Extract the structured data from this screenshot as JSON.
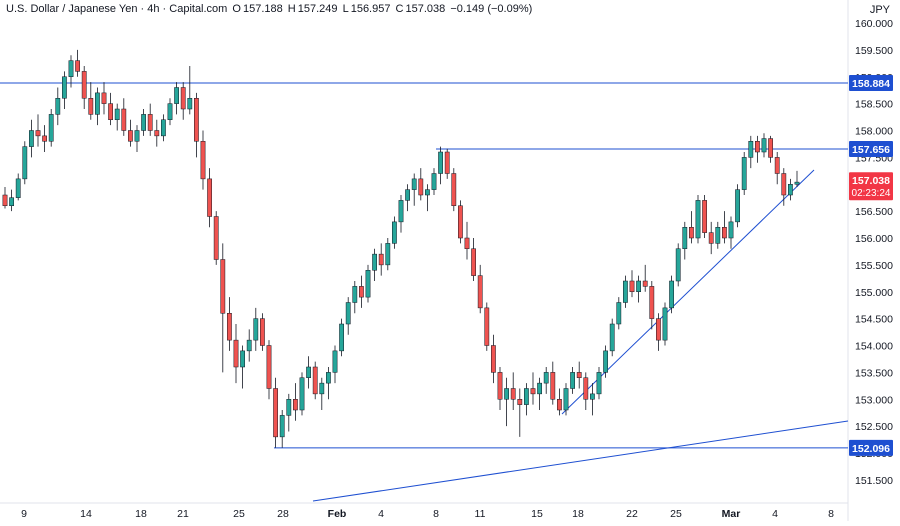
{
  "header": {
    "instrument": "U.S. Dollar / Japanese Yen · 4h · Capital.com",
    "open_label": "O",
    "open": "157.188",
    "high_label": "H",
    "high": "157.249",
    "low_label": "L",
    "low": "156.957",
    "close_label": "C",
    "close": "157.038",
    "change": "−0.149 (−0.09%)",
    "currency": "JPY"
  },
  "colors": {
    "up": "#26a69a",
    "down": "#ef5350",
    "line": "#2962ff",
    "axis_text": "#131722",
    "badge_line": "#1e4fd1",
    "badge_price": "#f23645"
  },
  "chart_data": {
    "type": "candlestick",
    "ylim": [
      151.2,
      160.1
    ],
    "y_ticks": [
      "151.500",
      "152.000",
      "152.500",
      "153.000",
      "153.500",
      "154.000",
      "154.500",
      "155.000",
      "155.500",
      "156.000",
      "156.500",
      "157.000",
      "157.500",
      "158.000",
      "158.500",
      "159.000",
      "159.500",
      "160.000"
    ],
    "x_ticks": [
      "9",
      "14",
      "18",
      "21",
      "25",
      "28",
      "Feb",
      "4",
      "8",
      "11",
      "15",
      "18",
      "22",
      "25",
      "Mar",
      "4",
      "8"
    ],
    "price_badges": [
      {
        "label": "158.884",
        "value": 158.884
      },
      {
        "label": "157.656",
        "value": 157.656
      },
      {
        "label": "152.096",
        "value": 152.096
      }
    ],
    "last_price": {
      "value": "157.038",
      "countdown": "02:23:24"
    },
    "candles": [
      [
        156.8,
        156.95,
        156.55,
        156.6
      ],
      [
        156.6,
        156.9,
        156.5,
        156.75
      ],
      [
        156.75,
        157.2,
        156.7,
        157.1
      ],
      [
        157.1,
        157.8,
        157.0,
        157.7
      ],
      [
        157.7,
        158.2,
        157.5,
        158.0
      ],
      [
        158.0,
        158.3,
        157.7,
        157.9
      ],
      [
        157.9,
        158.1,
        157.6,
        157.8
      ],
      [
        157.8,
        158.4,
        157.7,
        158.3
      ],
      [
        158.3,
        158.8,
        158.1,
        158.6
      ],
      [
        158.6,
        159.1,
        158.4,
        159.0
      ],
      [
        159.0,
        159.4,
        158.8,
        159.3
      ],
      [
        159.3,
        159.5,
        159.0,
        159.1
      ],
      [
        159.1,
        159.2,
        158.4,
        158.6
      ],
      [
        158.6,
        158.9,
        158.2,
        158.3
      ],
      [
        158.3,
        158.8,
        158.1,
        158.7
      ],
      [
        158.7,
        158.9,
        158.3,
        158.5
      ],
      [
        158.5,
        158.7,
        158.1,
        158.2
      ],
      [
        158.2,
        158.5,
        158.0,
        158.4
      ],
      [
        158.4,
        158.6,
        157.9,
        158.0
      ],
      [
        158.0,
        158.2,
        157.7,
        157.8
      ],
      [
        157.8,
        158.1,
        157.6,
        158.0
      ],
      [
        158.0,
        158.4,
        157.9,
        158.3
      ],
      [
        158.3,
        158.5,
        157.9,
        158.0
      ],
      [
        158.0,
        158.2,
        157.7,
        157.9
      ],
      [
        157.9,
        158.3,
        157.8,
        158.2
      ],
      [
        158.2,
        158.6,
        158.1,
        158.5
      ],
      [
        158.5,
        158.9,
        158.3,
        158.8
      ],
      [
        158.8,
        158.9,
        158.2,
        158.4
      ],
      [
        158.4,
        159.2,
        158.3,
        158.6
      ],
      [
        158.6,
        158.7,
        157.5,
        157.8
      ],
      [
        157.8,
        158.0,
        156.9,
        157.1
      ],
      [
        157.1,
        157.3,
        156.2,
        156.4
      ],
      [
        156.4,
        156.5,
        155.5,
        155.6
      ],
      [
        155.6,
        155.9,
        153.5,
        154.6
      ],
      [
        154.6,
        154.9,
        153.9,
        154.1
      ],
      [
        154.1,
        154.4,
        153.3,
        153.6
      ],
      [
        153.6,
        154.0,
        153.2,
        153.9
      ],
      [
        153.9,
        154.3,
        153.7,
        154.1
      ],
      [
        154.1,
        154.7,
        153.9,
        154.5
      ],
      [
        154.5,
        154.6,
        153.9,
        154.0
      ],
      [
        154.0,
        154.1,
        153.0,
        153.2
      ],
      [
        153.2,
        153.4,
        152.1,
        152.3
      ],
      [
        152.3,
        152.8,
        152.1,
        152.7
      ],
      [
        152.7,
        153.1,
        152.4,
        153.0
      ],
      [
        153.0,
        153.3,
        152.6,
        152.8
      ],
      [
        152.8,
        153.5,
        152.7,
        153.4
      ],
      [
        153.4,
        153.8,
        153.2,
        153.6
      ],
      [
        153.6,
        153.7,
        153.0,
        153.1
      ],
      [
        153.1,
        153.4,
        152.8,
        153.3
      ],
      [
        153.3,
        153.6,
        153.0,
        153.5
      ],
      [
        153.5,
        154.0,
        153.3,
        153.9
      ],
      [
        153.9,
        154.5,
        153.8,
        154.4
      ],
      [
        154.4,
        154.9,
        154.2,
        154.8
      ],
      [
        154.8,
        155.2,
        154.6,
        155.1
      ],
      [
        155.1,
        155.3,
        154.7,
        154.9
      ],
      [
        154.9,
        155.5,
        154.8,
        155.4
      ],
      [
        155.4,
        155.8,
        155.2,
        155.7
      ],
      [
        155.7,
        155.9,
        155.3,
        155.5
      ],
      [
        155.5,
        156.0,
        155.4,
        155.9
      ],
      [
        155.9,
        156.4,
        155.8,
        156.3
      ],
      [
        156.3,
        156.8,
        156.1,
        156.7
      ],
      [
        156.7,
        157.0,
        156.5,
        156.9
      ],
      [
        156.9,
        157.2,
        156.6,
        157.1
      ],
      [
        157.1,
        157.3,
        156.7,
        156.8
      ],
      [
        156.8,
        157.0,
        156.5,
        156.9
      ],
      [
        156.9,
        157.3,
        156.8,
        157.2
      ],
      [
        157.2,
        157.7,
        157.0,
        157.6
      ],
      [
        157.6,
        157.66,
        157.1,
        157.2
      ],
      [
        157.2,
        157.3,
        156.5,
        156.6
      ],
      [
        156.6,
        156.7,
        155.9,
        156.0
      ],
      [
        156.0,
        156.3,
        155.6,
        155.8
      ],
      [
        155.8,
        156.0,
        155.2,
        155.3
      ],
      [
        155.3,
        155.5,
        154.6,
        154.7
      ],
      [
        154.7,
        154.8,
        153.9,
        154.0
      ],
      [
        154.0,
        154.2,
        153.3,
        153.5
      ],
      [
        153.5,
        153.6,
        152.8,
        153.0
      ],
      [
        153.0,
        153.4,
        152.5,
        153.2
      ],
      [
        153.2,
        153.5,
        152.8,
        153.0
      ],
      [
        153.0,
        153.2,
        152.3,
        152.9
      ],
      [
        152.9,
        153.3,
        152.7,
        153.2
      ],
      [
        153.2,
        153.5,
        152.9,
        153.1
      ],
      [
        153.1,
        153.4,
        152.8,
        153.3
      ],
      [
        153.3,
        153.6,
        153.1,
        153.5
      ],
      [
        153.5,
        153.7,
        152.9,
        153.0
      ],
      [
        153.0,
        153.2,
        152.7,
        152.8
      ],
      [
        152.8,
        153.3,
        152.7,
        153.2
      ],
      [
        153.2,
        153.6,
        153.1,
        153.5
      ],
      [
        153.5,
        153.7,
        153.2,
        153.4
      ],
      [
        153.4,
        153.5,
        152.8,
        153.0
      ],
      [
        153.0,
        153.3,
        152.7,
        153.1
      ],
      [
        153.1,
        153.6,
        153.0,
        153.5
      ],
      [
        153.5,
        154.0,
        153.4,
        153.9
      ],
      [
        153.9,
        154.5,
        153.8,
        154.4
      ],
      [
        154.4,
        154.9,
        154.3,
        154.8
      ],
      [
        154.8,
        155.3,
        154.7,
        155.2
      ],
      [
        155.2,
        155.4,
        154.9,
        155.0
      ],
      [
        155.0,
        155.3,
        154.8,
        155.2
      ],
      [
        155.2,
        155.5,
        155.0,
        155.1
      ],
      [
        155.1,
        155.2,
        154.3,
        154.5
      ],
      [
        154.5,
        154.6,
        153.9,
        154.1
      ],
      [
        154.1,
        154.8,
        154.0,
        154.7
      ],
      [
        154.7,
        155.3,
        154.6,
        155.2
      ],
      [
        155.2,
        155.9,
        155.1,
        155.8
      ],
      [
        155.8,
        156.3,
        155.6,
        156.2
      ],
      [
        156.2,
        156.5,
        155.9,
        156.0
      ],
      [
        156.0,
        156.8,
        155.9,
        156.7
      ],
      [
        156.7,
        156.8,
        156.0,
        156.1
      ],
      [
        156.1,
        156.3,
        155.7,
        155.9
      ],
      [
        155.9,
        156.3,
        155.8,
        156.2
      ],
      [
        156.2,
        156.5,
        155.9,
        156.0
      ],
      [
        156.0,
        156.4,
        155.8,
        156.3
      ],
      [
        156.3,
        157.0,
        156.2,
        156.9
      ],
      [
        156.9,
        157.6,
        156.8,
        157.5
      ],
      [
        157.5,
        157.9,
        157.3,
        157.8
      ],
      [
        157.8,
        157.9,
        157.4,
        157.6
      ],
      [
        157.6,
        157.95,
        157.5,
        157.85
      ],
      [
        157.85,
        157.9,
        157.4,
        157.5
      ],
      [
        157.5,
        157.6,
        157.0,
        157.2
      ],
      [
        157.2,
        157.3,
        156.6,
        156.8
      ],
      [
        156.8,
        157.1,
        156.7,
        157.0
      ],
      [
        157.0,
        157.25,
        156.95,
        157.04
      ]
    ],
    "lines": [
      {
        "name": "resistance-158884",
        "y": 158.884
      },
      {
        "name": "resistance-157656",
        "y": 157.656
      },
      {
        "name": "support-152096",
        "y": 152.096
      }
    ]
  }
}
